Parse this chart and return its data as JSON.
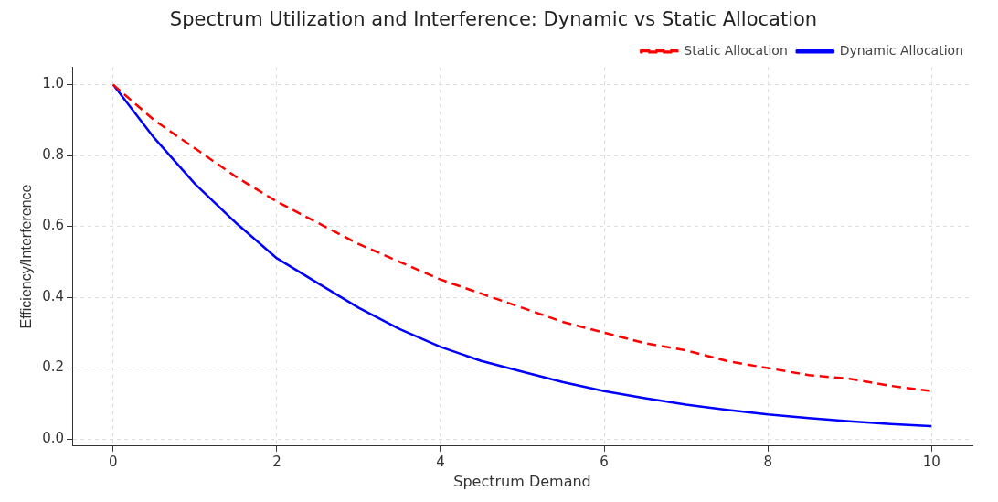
{
  "chart_data": {
    "type": "line",
    "title": "Spectrum Utilization and Interference: Dynamic vs Static Allocation",
    "xlabel": "Spectrum Demand",
    "ylabel": "Efficiency/Interference",
    "x": [
      0,
      0.5,
      1,
      1.5,
      2,
      2.5,
      3,
      3.5,
      4,
      4.5,
      5,
      5.5,
      6,
      6.5,
      7,
      7.5,
      8,
      8.5,
      9,
      9.5,
      10
    ],
    "series": [
      {
        "name": "Dynamic Allocation",
        "color": "#0000ff",
        "line_style": "solid",
        "values": [
          1,
          0.85,
          0.72,
          0.61,
          0.51,
          0.44,
          0.37,
          0.31,
          0.26,
          0.22,
          0.19,
          0.16,
          0.135,
          0.115,
          0.097,
          0.082,
          0.069,
          0.059,
          0.05,
          0.042,
          0.036
        ]
      },
      {
        "name": "Static Allocation",
        "color": "#ff0000",
        "line_style": "dashed",
        "values": [
          1,
          0.9,
          0.82,
          0.74,
          0.67,
          0.61,
          0.55,
          0.5,
          0.45,
          0.41,
          0.37,
          0.33,
          0.3,
          0.27,
          0.25,
          0.22,
          0.2,
          0.18,
          0.17,
          0.15,
          0.135
        ]
      }
    ],
    "xlim": [
      -0.5,
      10.5
    ],
    "xticks": [
      0,
      2,
      4,
      6,
      8,
      10
    ],
    "ylim": [
      -0.02,
      1.05
    ],
    "yticks": [
      {
        "value": 0,
        "label": "0.0"
      },
      {
        "value": 0.2,
        "label": "0.2"
      },
      {
        "value": 0.4,
        "label": "0.4"
      },
      {
        "value": 0.6,
        "label": "0.6"
      },
      {
        "value": 0.8,
        "label": "0.8"
      },
      {
        "value": 1,
        "label": "1.0"
      }
    ],
    "grid": true,
    "legend": "top right",
    "marker": "none"
  }
}
